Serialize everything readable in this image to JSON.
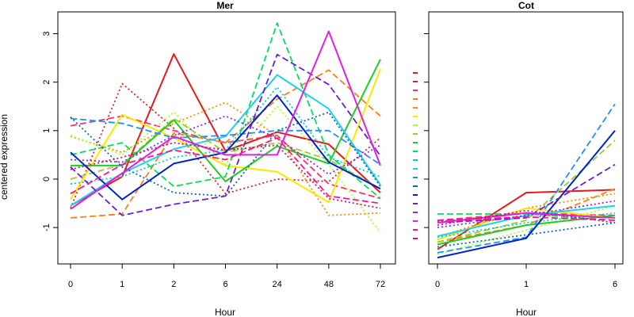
{
  "chart_data": [
    {
      "type": "line",
      "title": "Mer",
      "xlabel": "Hour",
      "ylabel": "centered expression",
      "categories": [
        "0",
        "1",
        "2",
        "6",
        "24",
        "48",
        "72"
      ],
      "ylim": [
        -1.75,
        3.45
      ],
      "yticks": [
        -1,
        0,
        1,
        2,
        3
      ],
      "series": [
        {
          "color": "#E41A1C",
          "dash": "solid",
          "values": [
            -0.55,
            0.05,
            2.58,
            0.58,
            0.97,
            0.72,
            -0.28
          ]
        },
        {
          "color": "#D62728",
          "dash": "dotted",
          "values": [
            -0.6,
            1.97,
            1.05,
            -0.3,
            0.0,
            -0.05,
            0.85
          ]
        },
        {
          "color": "#FF3366",
          "dash": "dashed",
          "values": [
            1.1,
            1.3,
            1.0,
            0.75,
            0.9,
            -0.1,
            -0.4
          ]
        },
        {
          "color": "#FF7F0E",
          "dash": "dashed",
          "values": [
            -0.8,
            -0.72,
            0.95,
            0.75,
            1.65,
            2.25,
            1.3
          ]
        },
        {
          "color": "#FF8C00",
          "dash": "dotted",
          "values": [
            0.88,
            0.55,
            1.15,
            1.58,
            0.9,
            -0.75,
            -0.7
          ]
        },
        {
          "color": "#FFE600",
          "dash": "solid",
          "values": [
            -0.42,
            1.33,
            0.85,
            0.28,
            0.15,
            -0.48,
            2.27
          ]
        },
        {
          "color": "#ADFF2F",
          "dash": "dotted",
          "values": [
            0.9,
            0.5,
            1.38,
            0.3,
            1.5,
            0.3,
            -1.1
          ]
        },
        {
          "color": "#9ACD32",
          "dash": "dashed",
          "values": [
            0.0,
            0.3,
            1.25,
            0.55,
            0.75,
            0.4,
            -0.2
          ]
        },
        {
          "color": "#22CC22",
          "dash": "solid",
          "values": [
            0.28,
            0.28,
            1.22,
            -0.05,
            0.68,
            0.32,
            2.47
          ]
        },
        {
          "color": "#00E060",
          "dash": "dashed",
          "values": [
            0.5,
            0.75,
            -0.15,
            0.05,
            3.22,
            0.5,
            -0.4
          ]
        },
        {
          "color": "#00CED1",
          "dash": "dotted",
          "values": [
            -0.1,
            0.05,
            0.45,
            0.6,
            1.9,
            0.45,
            0.05
          ]
        },
        {
          "color": "#20D0F0",
          "dash": "solid",
          "values": [
            -0.55,
            0.12,
            0.62,
            0.88,
            2.15,
            1.45,
            -0.12
          ]
        },
        {
          "color": "#1E90FF",
          "dash": "dashed",
          "values": [
            1.25,
            1.15,
            0.85,
            0.9,
            1.0,
            1.0,
            0.3
          ]
        },
        {
          "color": "#1560BD",
          "dash": "dotted",
          "values": [
            1.28,
            0.25,
            -0.28,
            -0.35,
            1.0,
            1.38,
            -0.15
          ]
        },
        {
          "color": "#0022CC",
          "dash": "solid",
          "values": [
            0.55,
            -0.42,
            0.32,
            0.55,
            1.73,
            0.35,
            -0.2
          ]
        },
        {
          "color": "#6A1FD6",
          "dash": "dashed",
          "values": [
            0.25,
            -0.75,
            -0.52,
            -0.35,
            2.57,
            1.95,
            0.48
          ]
        },
        {
          "color": "#8A2BE2",
          "dash": "dotted",
          "values": [
            0.4,
            0.35,
            0.9,
            1.3,
            0.85,
            0.1,
            0.7
          ]
        },
        {
          "color": "#E020E0",
          "dash": "solid",
          "values": [
            -0.62,
            0.12,
            0.88,
            0.5,
            0.5,
            3.05,
            0.28
          ]
        },
        {
          "color": "#FF1493",
          "dash": "dashed",
          "values": [
            -0.3,
            0.3,
            0.6,
            0.4,
            0.85,
            -0.35,
            -0.5
          ]
        },
        {
          "color": "#C71585",
          "dash": "dotted",
          "values": [
            0.2,
            0.45,
            0.75,
            0.6,
            0.7,
            -0.4,
            -0.6
          ]
        }
      ]
    },
    {
      "type": "line",
      "title": "Cot",
      "xlabel": "Hour",
      "ylabel": "",
      "categories": [
        "0",
        "1",
        "6"
      ],
      "ylim": [
        -1.75,
        3.45
      ],
      "yticks": [
        -1,
        0,
        1,
        2,
        3
      ],
      "series": [
        {
          "color": "#E41A1C",
          "dash": "solid",
          "values": [
            -1.45,
            -0.28,
            -0.22
          ]
        },
        {
          "color": "#D62728",
          "dash": "dotted",
          "values": [
            -0.88,
            -0.7,
            -0.8
          ]
        },
        {
          "color": "#FF3366",
          "dash": "dashed",
          "values": [
            -0.85,
            -0.7,
            -0.75
          ]
        },
        {
          "color": "#FF7F0E",
          "dash": "dashed",
          "values": [
            -1.3,
            -0.95,
            -0.2
          ]
        },
        {
          "color": "#FF8C00",
          "dash": "dotted",
          "values": [
            -1.2,
            -0.6,
            -0.3
          ]
        },
        {
          "color": "#FFE600",
          "dash": "solid",
          "values": [
            -1.25,
            -0.6,
            -0.8
          ]
        },
        {
          "color": "#ADFF2F",
          "dash": "dotted",
          "values": [
            -1.55,
            -1.05,
            -0.55
          ]
        },
        {
          "color": "#9ACD32",
          "dash": "dashed",
          "values": [
            -1.3,
            -0.85,
            0.8
          ]
        },
        {
          "color": "#22CC22",
          "dash": "solid",
          "values": [
            -1.35,
            -0.95,
            -0.75
          ]
        },
        {
          "color": "#00E060",
          "dash": "dashed",
          "values": [
            -0.72,
            -0.72,
            -0.85
          ]
        },
        {
          "color": "#00CED1",
          "dash": "dotted",
          "values": [
            -1.2,
            -0.9,
            -0.7
          ]
        },
        {
          "color": "#20D0F0",
          "dash": "solid",
          "values": [
            -1.18,
            -0.75,
            -0.55
          ]
        },
        {
          "color": "#1E90FF",
          "dash": "dashed",
          "values": [
            -1.52,
            -1.2,
            1.55
          ]
        },
        {
          "color": "#1560BD",
          "dash": "dotted",
          "values": [
            -1.4,
            -1.15,
            -0.9
          ]
        },
        {
          "color": "#0022CC",
          "dash": "solid",
          "values": [
            -1.62,
            -1.22,
            1.0
          ]
        },
        {
          "color": "#6A1FD6",
          "dash": "dashed",
          "values": [
            -0.9,
            -0.8,
            0.3
          ]
        },
        {
          "color": "#8A2BE2",
          "dash": "dotted",
          "values": [
            -1.0,
            -0.75,
            -0.45
          ]
        },
        {
          "color": "#E020E0",
          "dash": "solid",
          "values": [
            -0.9,
            -0.7,
            -0.8
          ]
        },
        {
          "color": "#FF1493",
          "dash": "dashed",
          "values": [
            -0.85,
            -0.78,
            -0.85
          ]
        },
        {
          "color": "#C71585",
          "dash": "dotted",
          "values": [
            -0.95,
            -0.65,
            -0.9
          ]
        }
      ]
    }
  ]
}
